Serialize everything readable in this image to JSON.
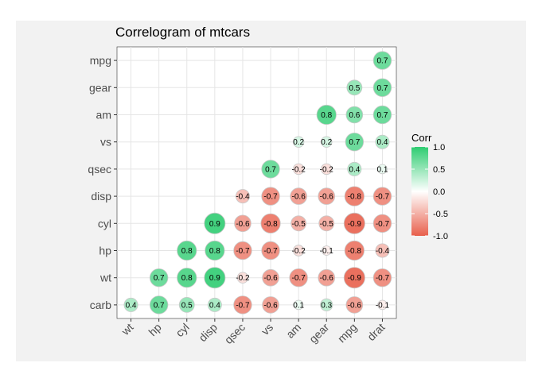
{
  "chart_data": {
    "type": "scatter",
    "title": "Correlogram of mtcars",
    "x_categories": [
      "wt",
      "hp",
      "cyl",
      "disp",
      "qsec",
      "vs",
      "am",
      "gear",
      "mpg",
      "drat"
    ],
    "y_categories": [
      "carb",
      "wt",
      "hp",
      "cyl",
      "disp",
      "qsec",
      "vs",
      "am",
      "gear",
      "mpg"
    ],
    "legend": {
      "title": "Corr",
      "ticks": [
        "1.0",
        "0.5",
        "0.0",
        "-0.5",
        "-1.0"
      ],
      "tick_values": [
        1.0,
        0.5,
        0.0,
        -0.5,
        -1.0
      ],
      "placement": "right"
    },
    "colors": {
      "high": "#2ecc71",
      "mid": "#ffffff",
      "low": "#e8604c",
      "panel": "#ffffff",
      "background": "#f2f2f2",
      "grid": "#e5e5e5"
    },
    "cells": [
      {
        "x": "wt",
        "y": "carb",
        "value": 0.4,
        "label": "0.4"
      },
      {
        "x": "hp",
        "y": "carb",
        "value": 0.7,
        "label": "0.7"
      },
      {
        "x": "cyl",
        "y": "carb",
        "value": 0.5,
        "label": "0.5"
      },
      {
        "x": "disp",
        "y": "carb",
        "value": 0.4,
        "label": "0.4"
      },
      {
        "x": "qsec",
        "y": "carb",
        "value": -0.7,
        "label": "-0.7"
      },
      {
        "x": "vs",
        "y": "carb",
        "value": -0.6,
        "label": "-0.6"
      },
      {
        "x": "am",
        "y": "carb",
        "value": 0.1,
        "label": "0.1"
      },
      {
        "x": "gear",
        "y": "carb",
        "value": 0.3,
        "label": "0.3"
      },
      {
        "x": "mpg",
        "y": "carb",
        "value": -0.6,
        "label": "-0.6"
      },
      {
        "x": "drat",
        "y": "carb",
        "value": -0.1,
        "label": "-0.1"
      },
      {
        "x": "hp",
        "y": "wt",
        "value": 0.7,
        "label": "0.7"
      },
      {
        "x": "cyl",
        "y": "wt",
        "value": 0.8,
        "label": "0.8"
      },
      {
        "x": "disp",
        "y": "wt",
        "value": 0.9,
        "label": "0.9"
      },
      {
        "x": "qsec",
        "y": "wt",
        "value": -0.2,
        "label": "-0.2"
      },
      {
        "x": "vs",
        "y": "wt",
        "value": -0.6,
        "label": "-0.6"
      },
      {
        "x": "am",
        "y": "wt",
        "value": -0.7,
        "label": "-0.7"
      },
      {
        "x": "gear",
        "y": "wt",
        "value": -0.6,
        "label": "-0.6"
      },
      {
        "x": "mpg",
        "y": "wt",
        "value": -0.9,
        "label": "-0.9"
      },
      {
        "x": "drat",
        "y": "wt",
        "value": -0.7,
        "label": "-0.7"
      },
      {
        "x": "cyl",
        "y": "hp",
        "value": 0.8,
        "label": "0.8"
      },
      {
        "x": "disp",
        "y": "hp",
        "value": 0.8,
        "label": "0.8"
      },
      {
        "x": "qsec",
        "y": "hp",
        "value": -0.7,
        "label": "-0.7"
      },
      {
        "x": "vs",
        "y": "hp",
        "value": -0.7,
        "label": "-0.7"
      },
      {
        "x": "am",
        "y": "hp",
        "value": -0.2,
        "label": "-0.2"
      },
      {
        "x": "gear",
        "y": "hp",
        "value": -0.1,
        "label": "-0.1"
      },
      {
        "x": "mpg",
        "y": "hp",
        "value": -0.8,
        "label": "-0.8"
      },
      {
        "x": "drat",
        "y": "hp",
        "value": -0.4,
        "label": "-0.4"
      },
      {
        "x": "disp",
        "y": "cyl",
        "value": 0.9,
        "label": "0.9"
      },
      {
        "x": "qsec",
        "y": "cyl",
        "value": -0.6,
        "label": "-0.6"
      },
      {
        "x": "vs",
        "y": "cyl",
        "value": -0.8,
        "label": "-0.8"
      },
      {
        "x": "am",
        "y": "cyl",
        "value": -0.5,
        "label": "-0.5"
      },
      {
        "x": "gear",
        "y": "cyl",
        "value": -0.5,
        "label": "-0.5"
      },
      {
        "x": "mpg",
        "y": "cyl",
        "value": -0.9,
        "label": "-0.9"
      },
      {
        "x": "drat",
        "y": "cyl",
        "value": -0.7,
        "label": "-0.7"
      },
      {
        "x": "qsec",
        "y": "disp",
        "value": -0.4,
        "label": "-0.4"
      },
      {
        "x": "vs",
        "y": "disp",
        "value": -0.7,
        "label": "-0.7"
      },
      {
        "x": "am",
        "y": "disp",
        "value": -0.6,
        "label": "-0.6"
      },
      {
        "x": "gear",
        "y": "disp",
        "value": -0.6,
        "label": "-0.6"
      },
      {
        "x": "mpg",
        "y": "disp",
        "value": -0.8,
        "label": "-0.8"
      },
      {
        "x": "drat",
        "y": "disp",
        "value": -0.7,
        "label": "-0.7"
      },
      {
        "x": "vs",
        "y": "qsec",
        "value": 0.7,
        "label": "0.7"
      },
      {
        "x": "am",
        "y": "qsec",
        "value": -0.2,
        "label": "-0.2"
      },
      {
        "x": "gear",
        "y": "qsec",
        "value": -0.2,
        "label": "-0.2"
      },
      {
        "x": "mpg",
        "y": "qsec",
        "value": 0.4,
        "label": "0.4"
      },
      {
        "x": "drat",
        "y": "qsec",
        "value": 0.1,
        "label": "0.1"
      },
      {
        "x": "am",
        "y": "vs",
        "value": 0.2,
        "label": "0.2"
      },
      {
        "x": "gear",
        "y": "vs",
        "value": 0.2,
        "label": "0.2"
      },
      {
        "x": "mpg",
        "y": "vs",
        "value": 0.7,
        "label": "0.7"
      },
      {
        "x": "drat",
        "y": "vs",
        "value": 0.4,
        "label": "0.4"
      },
      {
        "x": "gear",
        "y": "am",
        "value": 0.8,
        "label": "0.8"
      },
      {
        "x": "mpg",
        "y": "am",
        "value": 0.6,
        "label": "0.6"
      },
      {
        "x": "drat",
        "y": "am",
        "value": 0.7,
        "label": "0.7"
      },
      {
        "x": "mpg",
        "y": "gear",
        "value": 0.5,
        "label": "0.5"
      },
      {
        "x": "drat",
        "y": "gear",
        "value": 0.7,
        "label": "0.7"
      },
      {
        "x": "drat",
        "y": "mpg",
        "value": 0.7,
        "label": "0.7"
      }
    ]
  }
}
